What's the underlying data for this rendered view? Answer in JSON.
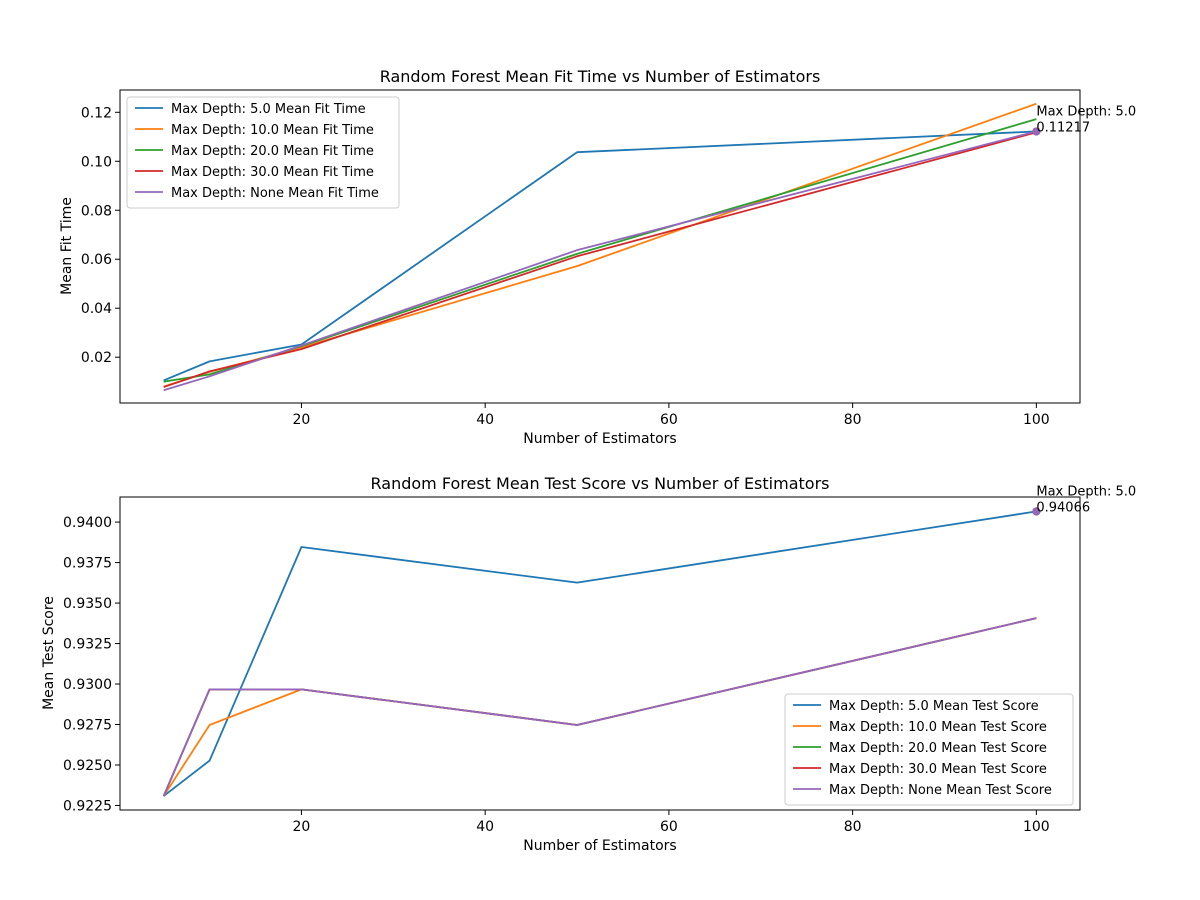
{
  "chart_data": [
    {
      "type": "line",
      "title": "Random Forest Mean Fit Time vs Number of Estimators",
      "xlabel": "Number of Estimators",
      "ylabel": "Mean Fit Time",
      "x": [
        5,
        10,
        20,
        50,
        100
      ],
      "xlim": [
        0.25,
        104.75
      ],
      "ylim": [
        0.0013,
        0.1291
      ],
      "xticks": [
        20,
        40,
        60,
        80,
        100
      ],
      "yticks": [
        0.02,
        0.04,
        0.06,
        0.08,
        0.1,
        0.12
      ],
      "ytick_labels": [
        "0.02",
        "0.04",
        "0.06",
        "0.08",
        "0.10",
        "0.12"
      ],
      "grid": false,
      "legend_position": "top-left",
      "series": [
        {
          "name": "Max Depth: 5.0 Mean Fit Time",
          "color": "#1f77b4",
          "values": [
            0.0105,
            0.0183,
            0.0252,
            0.1037,
            0.11217
          ]
        },
        {
          "name": "Max Depth: 10.0 Mean Fit Time",
          "color": "#ff7f0e",
          "values": [
            0.008,
            0.014,
            0.024,
            0.0572,
            0.1235
          ]
        },
        {
          "name": "Max Depth: 20.0 Mean Fit Time",
          "color": "#2ca02c",
          "values": [
            0.01,
            0.013,
            0.0245,
            0.0622,
            0.1172
          ]
        },
        {
          "name": "Max Depth: 30.0 Mean Fit Time",
          "color": "#d62728",
          "values": [
            0.0078,
            0.0142,
            0.0233,
            0.0612,
            0.1118
          ]
        },
        {
          "name": "Max Depth: None Mean Fit Time",
          "color": "#9467bd",
          "values": [
            0.0065,
            0.0122,
            0.0248,
            0.0637,
            0.1122
          ]
        }
      ],
      "annotation": {
        "x": 100,
        "y": 0.11217,
        "line1": "Max Depth: 5.0",
        "line2": "0.11217"
      }
    },
    {
      "type": "line",
      "title": "Random Forest Mean Test Score vs Number of Estimators",
      "xlabel": "Number of Estimators",
      "ylabel": "Mean Test Score",
      "x": [
        5,
        10,
        20,
        50,
        100
      ],
      "xlim": [
        0.25,
        104.75
      ],
      "ylim": [
        0.92222,
        0.94155
      ],
      "xticks": [
        20,
        40,
        60,
        80,
        100
      ],
      "yticks": [
        0.9225,
        0.925,
        0.9275,
        0.93,
        0.9325,
        0.935,
        0.9375,
        0.94
      ],
      "ytick_labels": [
        "0.9225",
        "0.9250",
        "0.9275",
        "0.9300",
        "0.9325",
        "0.9350",
        "0.9375",
        "0.9400"
      ],
      "grid": false,
      "legend_position": "bottom-right",
      "series": [
        {
          "name": "Max Depth: 5.0 Mean Test Score",
          "color": "#1f77b4",
          "values": [
            0.92308,
            0.92527,
            0.93846,
            0.93626,
            0.94066
          ]
        },
        {
          "name": "Max Depth: 10.0 Mean Test Score",
          "color": "#ff7f0e",
          "values": [
            0.92308,
            0.92747,
            0.92967,
            0.92747,
            0.93407
          ]
        },
        {
          "name": "Max Depth: 20.0 Mean Test Score",
          "color": "#2ca02c",
          "values": [
            0.92308,
            0.92967,
            0.92967,
            0.92747,
            0.93407
          ]
        },
        {
          "name": "Max Depth: 30.0 Mean Test Score",
          "color": "#d62728",
          "values": [
            0.92308,
            0.92967,
            0.92967,
            0.92747,
            0.93407
          ]
        },
        {
          "name": "Max Depth: None Mean Test Score",
          "color": "#9467bd",
          "values": [
            0.92308,
            0.92967,
            0.92967,
            0.92747,
            0.93407
          ]
        }
      ],
      "annotation": {
        "x": 100,
        "y": 0.94066,
        "line1": "Max Depth: 5.0",
        "line2": "0.94066"
      }
    }
  ]
}
